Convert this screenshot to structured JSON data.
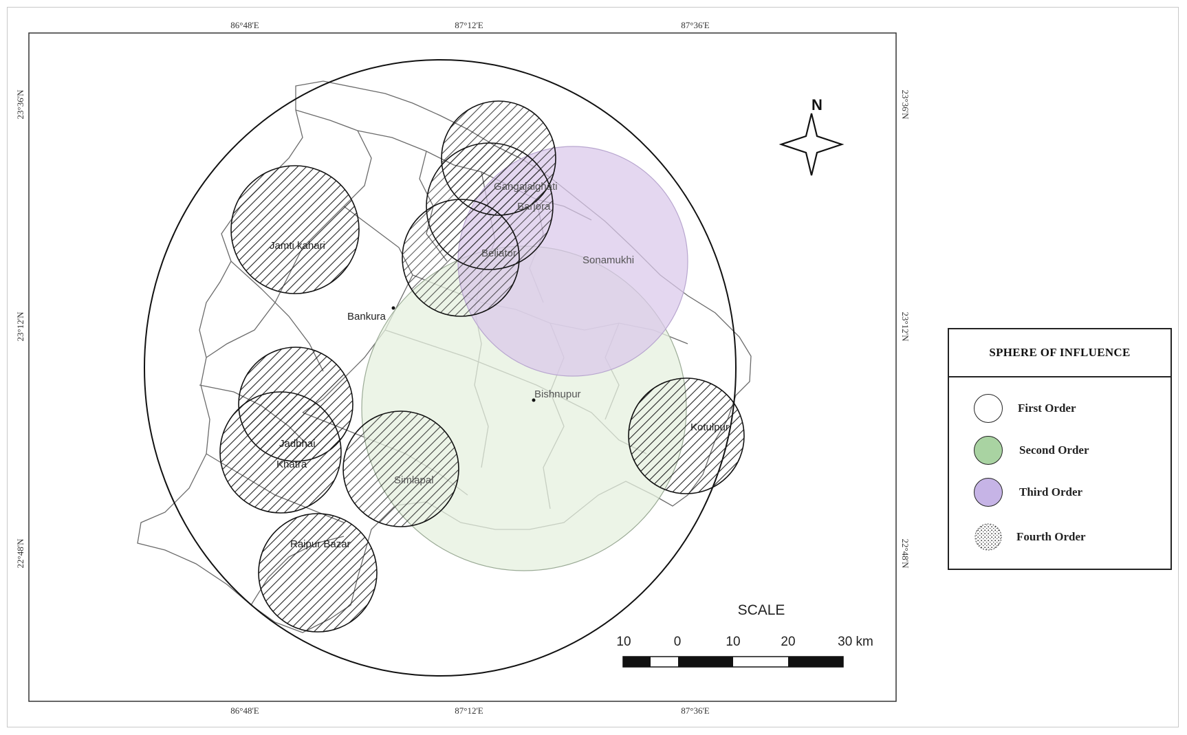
{
  "map": {
    "top_coords": [
      "86°48'E",
      "87°12'E",
      "87°36'E"
    ],
    "bottom_coords": [
      "86°48'E",
      "87°12'E",
      "87°36'E"
    ],
    "left_coords": [
      "23°36'N",
      "23°12'N",
      "22°48'N"
    ],
    "right_coords": [
      "23°36'N",
      "23°12'N",
      "22°48'N"
    ],
    "places": {
      "bankura": "Bankura",
      "bishnupur": "Bishnupur",
      "sonamukhi": "Sonamukhi",
      "barjora": "Barjora",
      "beliator": "Beliator",
      "gangajalghati": "Gangajalghati",
      "jamtikahari": "Jamti kahari",
      "jadbhai": "Jadbhai",
      "khatra": "Khatra",
      "simlapal": "Simlapal",
      "raipur": "Raipur Bazar",
      "kotulpur": "Kotulpur"
    },
    "north_label": "N",
    "scale": {
      "title": "SCALE",
      "ticks": [
        "10",
        "0",
        "10",
        "20",
        "30 km"
      ]
    },
    "colors": {
      "second_order": "#e6f0df",
      "third_order": "#d9c8ea",
      "boundary": "#6a6a6a",
      "circle_outline": "#1a1a1a"
    }
  },
  "legend": {
    "title": "SPHERE OF INFLUENCE",
    "items": [
      {
        "label": "First Order",
        "swatch": "#ffffff"
      },
      {
        "label": "Second Order",
        "swatch": "#a9d3a2"
      },
      {
        "label": "Third Order",
        "swatch": "#c6b4e6"
      },
      {
        "label": "Fourth Order",
        "swatch": "stipple"
      }
    ]
  }
}
